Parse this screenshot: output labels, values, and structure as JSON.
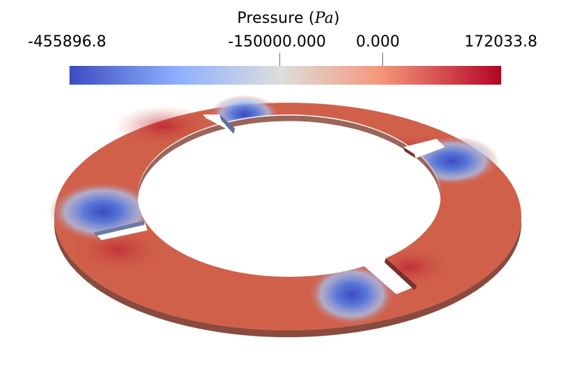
{
  "legend": {
    "title_text": "Pressure (",
    "title_unit": "Pa",
    "title_close": ")",
    "min_label": "-455896.8",
    "tick_a_label": "-150000.000",
    "tick_b_label": "0.000",
    "max_label": "172033.8",
    "colormap": [
      "#3b4cc0",
      "#8db0fe",
      "#dddddd",
      "#f4987a",
      "#b40426"
    ],
    "range": [
      -455896.8,
      172033.8
    ]
  },
  "scene": {
    "object": "annular ring with four rectangular slots",
    "colors": {
      "ring_base": "#d0604a",
      "ring_edge": "#8a4a3e",
      "low_pressure": "#3b4cc0",
      "high_pressure": "#b40426"
    }
  }
}
